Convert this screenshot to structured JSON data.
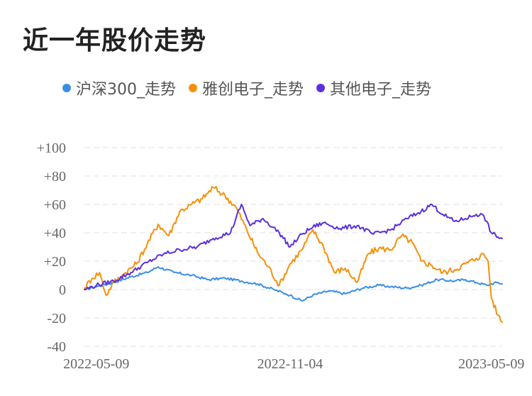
{
  "title": "近一年股价走势",
  "colors": {
    "hs300": "#3a8ee6",
    "yachuang": "#f5900a",
    "qita": "#5b2fe0",
    "grid": "#e6e6e6"
  },
  "chart_data": {
    "type": "line",
    "ylim": [
      -40,
      100
    ],
    "yticks": [
      {
        "value": 100,
        "label": "+100"
      },
      {
        "value": 80,
        "label": "+80"
      },
      {
        "value": 60,
        "label": "+60"
      },
      {
        "value": 40,
        "label": "+40"
      },
      {
        "value": 20,
        "label": "+20"
      },
      {
        "value": 0,
        "label": "0"
      },
      {
        "value": -20,
        "label": "-20"
      },
      {
        "value": -40,
        "label": "-40"
      }
    ],
    "x_start": "2022-04-28",
    "x_end": "2023-05-19",
    "xticks": [
      {
        "date": "2022-05-09",
        "label": "2022-05-09"
      },
      {
        "date": "2022-11-04",
        "label": "2022-11-04"
      },
      {
        "date": "2023-05-09",
        "label": "2023-05-09"
      }
    ],
    "grid": true,
    "legend_position": "top",
    "series": [
      {
        "name": "沪深300_走势",
        "color": "#3a8ee6",
        "points": [
          [
            "2022-04-28",
            0
          ],
          [
            "2022-05-09",
            2
          ],
          [
            "2022-05-25",
            5
          ],
          [
            "2022-06-10",
            9
          ],
          [
            "2022-06-25",
            12
          ],
          [
            "2022-07-05",
            16
          ],
          [
            "2022-07-20",
            12
          ],
          [
            "2022-08-05",
            10
          ],
          [
            "2022-08-20",
            7
          ],
          [
            "2022-09-05",
            8
          ],
          [
            "2022-09-20",
            6
          ],
          [
            "2022-10-05",
            4
          ],
          [
            "2022-10-20",
            0
          ],
          [
            "2022-10-31",
            -3
          ],
          [
            "2022-11-04",
            -4
          ],
          [
            "2022-11-15",
            -8
          ],
          [
            "2022-11-25",
            -4
          ],
          [
            "2022-12-10",
            -1
          ],
          [
            "2022-12-25",
            -3
          ],
          [
            "2023-01-10",
            1
          ],
          [
            "2023-01-25",
            3
          ],
          [
            "2023-02-05",
            2
          ],
          [
            "2023-02-20",
            1
          ],
          [
            "2023-03-05",
            3
          ],
          [
            "2023-03-20",
            7
          ],
          [
            "2023-04-05",
            6
          ],
          [
            "2023-04-15",
            7
          ],
          [
            "2023-04-25",
            5
          ],
          [
            "2023-05-05",
            3
          ],
          [
            "2023-05-09",
            4
          ],
          [
            "2023-05-15",
            5
          ],
          [
            "2023-05-19",
            4
          ]
        ]
      },
      {
        "name": "雅创电子_走势",
        "color": "#f5900a",
        "points": [
          [
            "2022-04-28",
            1
          ],
          [
            "2022-05-05",
            8
          ],
          [
            "2022-05-12",
            12
          ],
          [
            "2022-05-18",
            -4
          ],
          [
            "2022-05-25",
            5
          ],
          [
            "2022-06-05",
            12
          ],
          [
            "2022-06-15",
            18
          ],
          [
            "2022-06-25",
            32
          ],
          [
            "2022-07-05",
            46
          ],
          [
            "2022-07-15",
            38
          ],
          [
            "2022-07-25",
            55
          ],
          [
            "2022-08-05",
            60
          ],
          [
            "2022-08-15",
            64
          ],
          [
            "2022-08-25",
            72
          ],
          [
            "2022-09-05",
            66
          ],
          [
            "2022-09-15",
            58
          ],
          [
            "2022-09-25",
            42
          ],
          [
            "2022-10-05",
            26
          ],
          [
            "2022-10-15",
            16
          ],
          [
            "2022-10-25",
            3
          ],
          [
            "2022-11-04",
            18
          ],
          [
            "2022-11-15",
            28
          ],
          [
            "2022-11-25",
            42
          ],
          [
            "2022-12-05",
            30
          ],
          [
            "2022-12-15",
            12
          ],
          [
            "2022-12-25",
            15
          ],
          [
            "2023-01-05",
            5
          ],
          [
            "2023-01-15",
            25
          ],
          [
            "2023-01-25",
            29
          ],
          [
            "2023-02-05",
            28
          ],
          [
            "2023-02-15",
            38
          ],
          [
            "2023-02-25",
            33
          ],
          [
            "2023-03-05",
            20
          ],
          [
            "2023-03-15",
            17
          ],
          [
            "2023-03-25",
            12
          ],
          [
            "2023-04-05",
            14
          ],
          [
            "2023-04-15",
            18
          ],
          [
            "2023-04-25",
            22
          ],
          [
            "2023-05-02",
            25
          ],
          [
            "2023-05-06",
            20
          ],
          [
            "2023-05-09",
            -6
          ],
          [
            "2023-05-15",
            -18
          ],
          [
            "2023-05-19",
            -23
          ]
        ]
      },
      {
        "name": "其他电子_走势",
        "color": "#5b2fe0",
        "points": [
          [
            "2022-04-28",
            0
          ],
          [
            "2022-05-09",
            3
          ],
          [
            "2022-05-25",
            6
          ],
          [
            "2022-06-10",
            12
          ],
          [
            "2022-06-25",
            19
          ],
          [
            "2022-07-10",
            25
          ],
          [
            "2022-07-25",
            28
          ],
          [
            "2022-08-10",
            30
          ],
          [
            "2022-08-25",
            36
          ],
          [
            "2022-09-10",
            40
          ],
          [
            "2022-09-20",
            60
          ],
          [
            "2022-09-28",
            45
          ],
          [
            "2022-10-10",
            50
          ],
          [
            "2022-10-25",
            40
          ],
          [
            "2022-11-04",
            30
          ],
          [
            "2022-11-15",
            39
          ],
          [
            "2022-11-25",
            44
          ],
          [
            "2022-12-05",
            47
          ],
          [
            "2022-12-20",
            43
          ],
          [
            "2023-01-05",
            45
          ],
          [
            "2023-01-20",
            39
          ],
          [
            "2023-02-05",
            42
          ],
          [
            "2023-02-20",
            50
          ],
          [
            "2023-03-05",
            55
          ],
          [
            "2023-03-15",
            60
          ],
          [
            "2023-03-25",
            53
          ],
          [
            "2023-04-05",
            48
          ],
          [
            "2023-04-15",
            50
          ],
          [
            "2023-04-25",
            53
          ],
          [
            "2023-05-02",
            52
          ],
          [
            "2023-05-09",
            40
          ],
          [
            "2023-05-15",
            37
          ],
          [
            "2023-05-19",
            36
          ]
        ]
      }
    ]
  }
}
